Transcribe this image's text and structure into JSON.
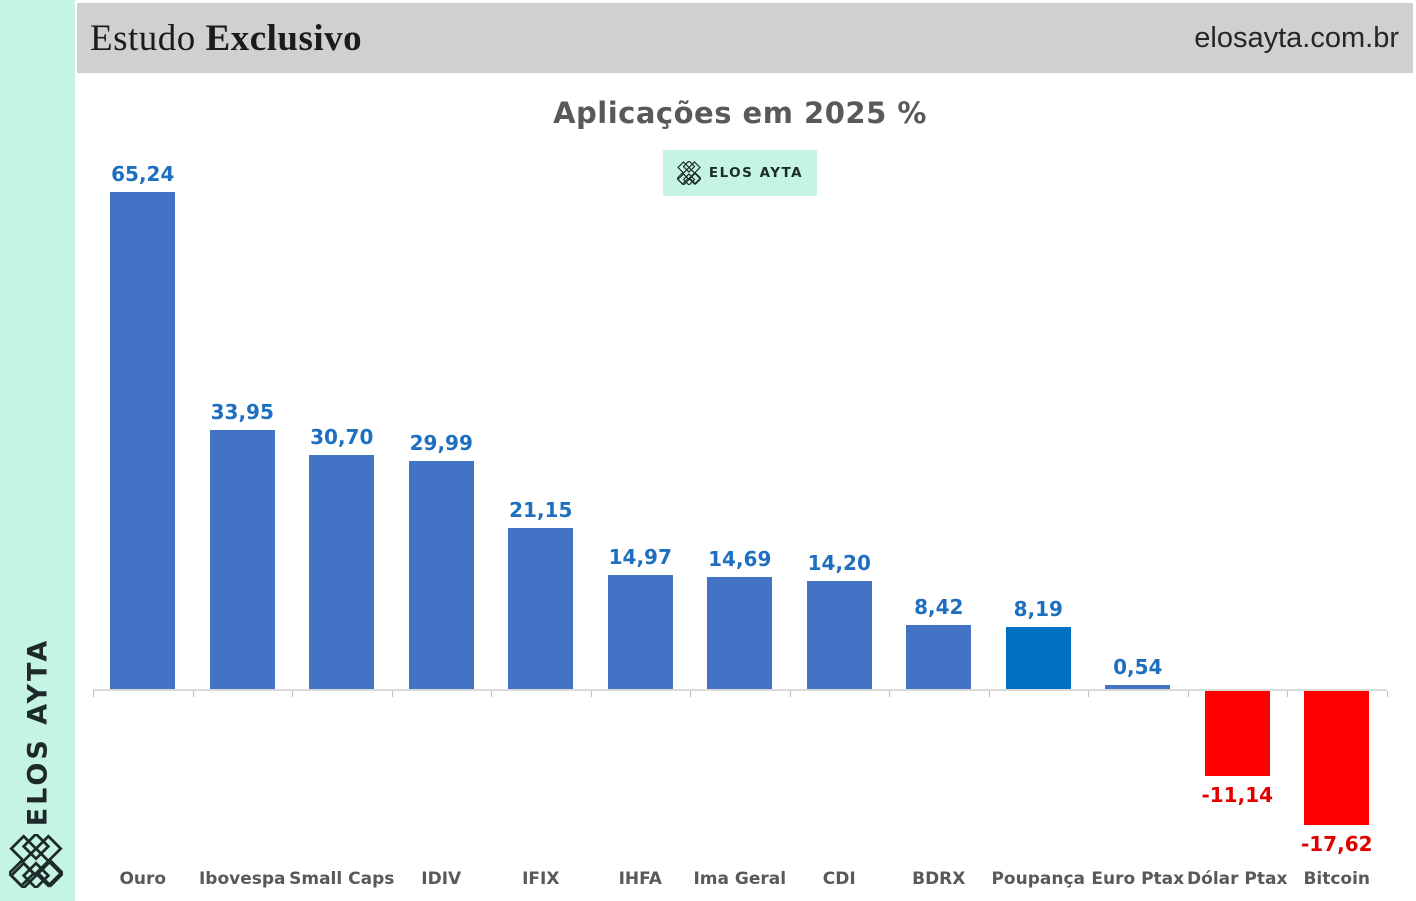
{
  "sidebar": {
    "vertical_text": "ELOS AYTA"
  },
  "header": {
    "title_regular": "Estudo ",
    "title_bold": "Exclusivo",
    "site_url": "elosayta.com.br"
  },
  "colors": {
    "mint": "#c5f3e4",
    "header_bg": "#d1d0d0",
    "ink": "#1c2b29",
    "title_gray": "#595959"
  },
  "chart_data": {
    "type": "bar",
    "title": "Aplicações em 2025 %",
    "badge": {
      "label": "ELOS AYTA",
      "icon": "lattice-logo-icon"
    },
    "categories": [
      "Ouro",
      "Ibovespa",
      "Small Caps",
      "IDIV",
      "IFIX",
      "IHFA",
      "Ima Geral",
      "CDI",
      "BDRX",
      "Poupança",
      "Euro Ptax",
      "Dólar Ptax",
      "Bitcoin"
    ],
    "values": [
      65.24,
      33.95,
      30.7,
      29.99,
      21.15,
      14.97,
      14.69,
      14.2,
      8.42,
      8.19,
      0.54,
      -11.14,
      -17.62
    ],
    "value_labels": [
      "65,24",
      "33,95",
      "30,70",
      "29,99",
      "21,15",
      "14,97",
      "14,69",
      "14,20",
      "8,42",
      "8,19",
      "0,54",
      "-11,14",
      "-17,62"
    ],
    "highlight_index": 9,
    "highlight_category": "Poupança",
    "xlabel": "",
    "ylabel": "",
    "ylim": [
      -20,
      70
    ],
    "grid": false,
    "legend": "none",
    "colors": {
      "bar_positive": "#4472c4",
      "bar_highlight": "#0070c0",
      "bar_negative": "#ff0000",
      "label_positive": "#1f6fc0",
      "label_negative": "#e00000",
      "category_label": "#595959",
      "axis_line": "#d9d9d9",
      "tick": "#bfbfbf"
    }
  }
}
